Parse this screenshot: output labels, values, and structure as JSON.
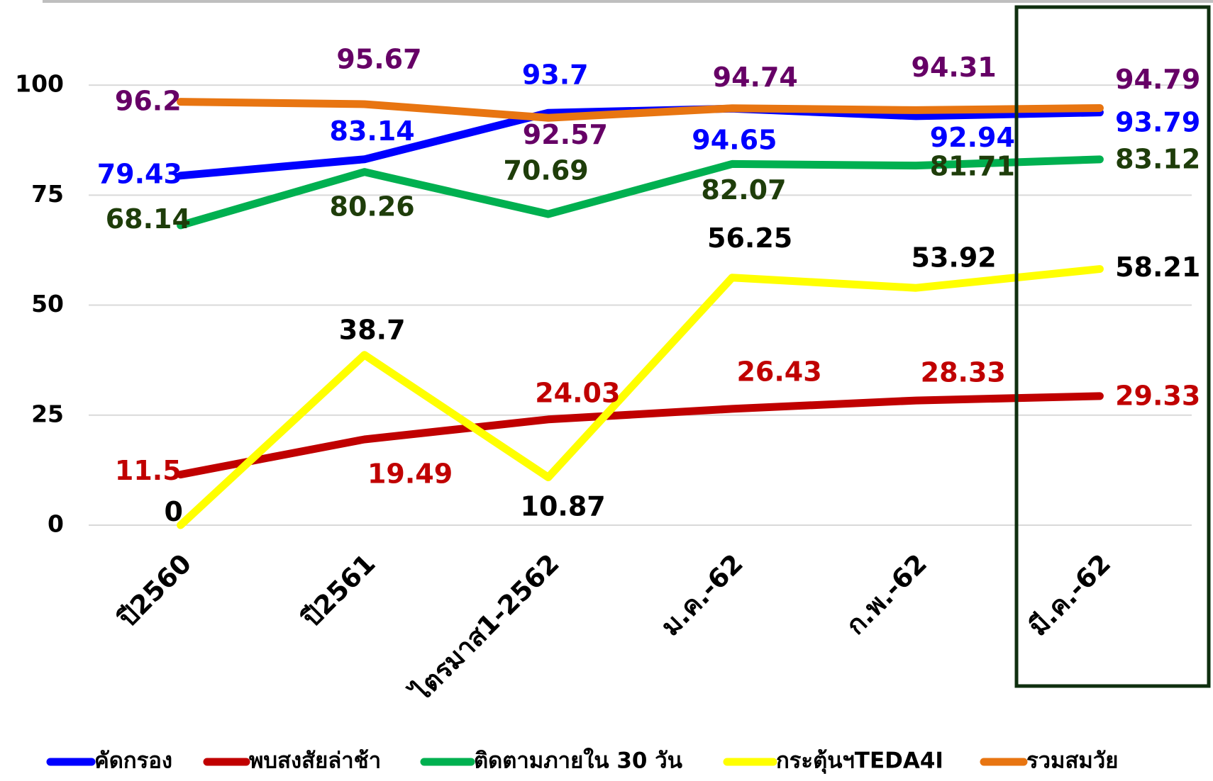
{
  "chart_data": {
    "type": "line",
    "categories": [
      "ปี2560",
      "ปี2561",
      "ไตรมาส1-2562",
      "ม.ค.-62",
      "ก.พ.-62",
      "มี.ค.-62"
    ],
    "series": [
      {
        "name": "คัดกรอง",
        "color": "#0000ff",
        "label_color": "#0000ff",
        "values": [
          79.43,
          83.14,
          93.7,
          94.65,
          92.94,
          93.79
        ]
      },
      {
        "name": "พบสงสัยล่าช้า",
        "color": "#c00000",
        "label_color": "#c00000",
        "values": [
          11.5,
          19.49,
          24.03,
          26.43,
          28.33,
          29.33
        ]
      },
      {
        "name": "ติดตามภายใน 30 วัน",
        "color": "#00b050",
        "label_color": "#1e3d0a",
        "values": [
          68.14,
          80.26,
          70.69,
          82.07,
          81.71,
          83.12
        ]
      },
      {
        "name": "กระตุ้นฯTEDA4I",
        "color": "#ffff00",
        "label_color": "#000000",
        "values": [
          0,
          38.7,
          10.87,
          56.25,
          53.92,
          58.21
        ]
      },
      {
        "name": "รวมสมวัย",
        "color": "#e87511",
        "label_color": "#660066",
        "values": [
          96.2,
          95.67,
          92.57,
          94.74,
          94.31,
          94.79
        ]
      }
    ],
    "ylim": [
      0,
      110
    ],
    "yticks": [
      0,
      25,
      50,
      75,
      100
    ],
    "grid": true,
    "legend": "bottom"
  }
}
